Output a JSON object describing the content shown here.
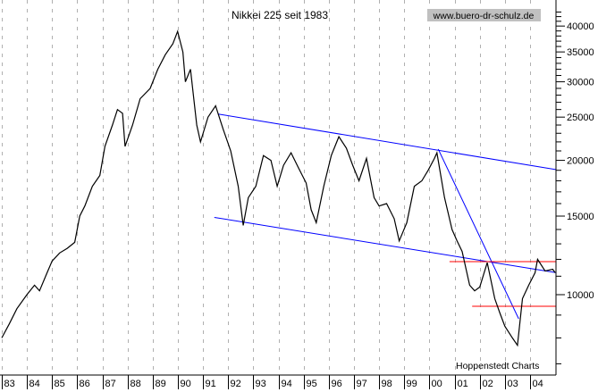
{
  "chart_data": {
    "type": "line",
    "title": "Nikkei 225 seit 1983",
    "watermark": "www.buero-dr-schulz.de",
    "source": "Hoppenstedt Charts",
    "xlabel": "",
    "ylabel": "",
    "y_scale": "log",
    "ylim": [
      6900,
      43000
    ],
    "xlim": [
      1983.0,
      2005.05
    ],
    "grid": "vertical dashed at each year",
    "x_tick_labels": [
      "83",
      "84",
      "85",
      "86",
      "87",
      "88",
      "89",
      "90",
      "91",
      "92",
      "93",
      "94",
      "95",
      "96",
      "97",
      "98",
      "99",
      "00",
      "01",
      "02",
      "03",
      "04"
    ],
    "y_ticks": [
      10000,
      15000,
      20000,
      25000,
      30000,
      35000,
      40000
    ],
    "y_tick_labels": [
      "10000",
      "15000",
      "20000",
      "25000",
      "30000",
      "35000",
      "40000"
    ],
    "colors": {
      "price": "#000000",
      "trend_lines": "#0000ff",
      "support_lines": "#ff0000",
      "grid": "#b0b0b0",
      "watermark_bg": "#c0c0c0"
    },
    "series": [
      {
        "x": [
          1983.0,
          1983.3,
          1983.6,
          1984.0,
          1984.3,
          1984.5,
          1984.8,
          1985.0,
          1985.3,
          1985.6,
          1985.9,
          1986.1,
          1986.3,
          1986.6,
          1986.9,
          1987.1,
          1987.4,
          1987.6,
          1987.8,
          1987.9,
          1988.2,
          1988.5,
          1988.9,
          1989.2,
          1989.5,
          1989.8,
          1989.99,
          1990.2,
          1990.3,
          1990.5,
          1990.75,
          1990.9,
          1991.2,
          1991.5,
          1991.8,
          1992.1,
          1992.4,
          1992.6,
          1992.8,
          1993.1,
          1993.4,
          1993.7,
          1993.95,
          1994.2,
          1994.5,
          1994.8,
          1995.1,
          1995.3,
          1995.5,
          1995.8,
          1996.1,
          1996.4,
          1996.7,
          1996.95,
          1997.2,
          1997.5,
          1997.8,
          1998.0,
          1998.3,
          1998.6,
          1998.8,
          1999.1,
          1999.4,
          1999.7,
          1999.95,
          2000.2,
          2000.3,
          2000.6,
          2000.9,
          2001.1,
          2001.3,
          2001.6,
          2001.8,
          2002.0,
          2002.3,
          2002.6,
          2002.8,
          2003.0,
          2003.3,
          2003.5,
          2003.7,
          2003.95,
          2004.2,
          2004.3,
          2004.6,
          2004.9,
          2005.0
        ],
        "y": [
          8000,
          8600,
          9300,
          10000,
          10500,
          10200,
          11200,
          11900,
          12400,
          12700,
          13100,
          15000,
          15800,
          17500,
          18500,
          21500,
          24000,
          26000,
          25500,
          21500,
          24000,
          27500,
          29000,
          32000,
          34500,
          36500,
          38900,
          35000,
          30000,
          32000,
          24000,
          22000,
          25000,
          26500,
          23500,
          21000,
          17500,
          14300,
          16500,
          17500,
          20500,
          20000,
          17500,
          19500,
          20800,
          19200,
          17800,
          15500,
          14500,
          17500,
          20500,
          22600,
          21300,
          19500,
          18000,
          20200,
          16500,
          15800,
          16000,
          14800,
          13200,
          14500,
          17500,
          18000,
          19000,
          20200,
          20800,
          16500,
          14000,
          13200,
          12500,
          10500,
          10200,
          10400,
          11800,
          9800,
          9100,
          8500,
          8000,
          7700,
          9800,
          10500,
          11200,
          12000,
          11300,
          11400,
          11200
        ]
      }
    ],
    "annotations": {
      "upper_channel": {
        "from": [
          1991.6,
          25400
        ],
        "to": [
          2005.05,
          19060
        ]
      },
      "lower_channel": {
        "from": [
          1991.45,
          14900
        ],
        "to": [
          2005.05,
          11200
        ]
      },
      "downtrend": {
        "from": [
          2000.35,
          21200
        ],
        "to": [
          2003.55,
          8830
        ]
      },
      "resistance": {
        "from": [
          2000.8,
          11860
        ],
        "to": [
          2005.05,
          11860
        ]
      },
      "support": {
        "from": [
          2001.7,
          9420
        ],
        "to": [
          2005.05,
          9420
        ]
      }
    }
  }
}
